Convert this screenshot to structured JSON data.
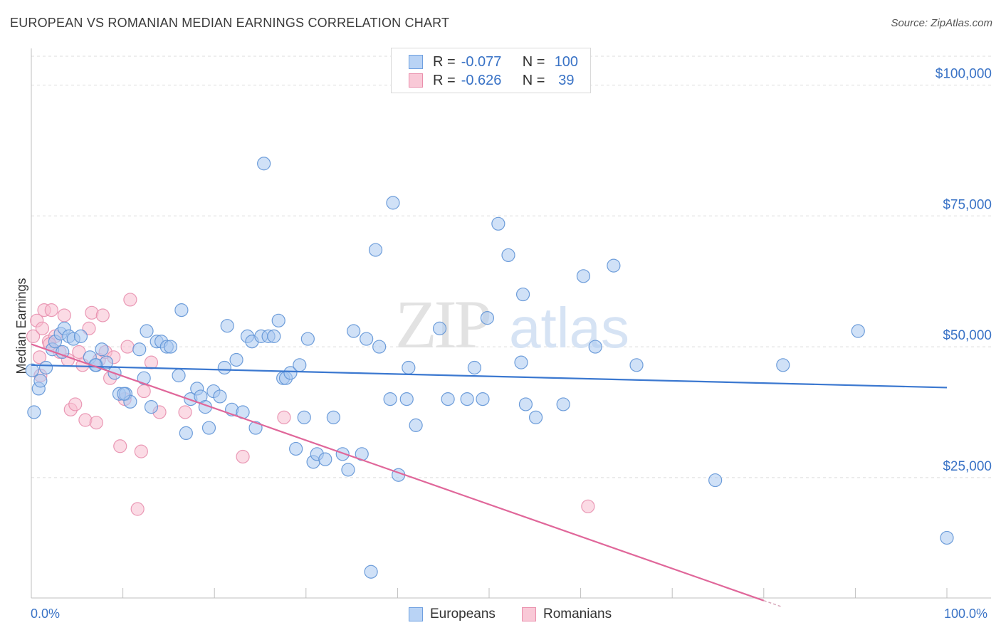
{
  "title": "EUROPEAN VS ROMANIAN MEDIAN EARNINGS CORRELATION CHART",
  "source": "Source: ZipAtlas.com",
  "legend": {
    "rows": [
      {
        "r_label": "R =",
        "r_value": "-0.077",
        "n_label": "N =",
        "n_value": "100",
        "fill": "#b9d3f5",
        "stroke": "#6fa0e0"
      },
      {
        "r_label": "R =",
        "r_value": "-0.626",
        "n_label": "N =",
        "n_value": "39",
        "fill": "#f9c9d7",
        "stroke": "#ea8fac"
      }
    ]
  },
  "bottom_legend": {
    "europeans": "Europeans",
    "romanians": "Romanians"
  },
  "watermark": {
    "zip": "ZIP",
    "atlas": "atlas"
  },
  "colors": {
    "blue": "#3b78d0",
    "pink": "#e0679a",
    "blue_fill": "#a9c8f0",
    "pink_fill": "#f7bdd0",
    "tick_text": "#3a73c6"
  },
  "chart_data": {
    "type": "scatter",
    "title": "EUROPEAN VS ROMANIAN MEDIAN EARNINGS CORRELATION CHART",
    "xlabel": "",
    "ylabel": "Median Earnings",
    "xlim": [
      0,
      100
    ],
    "ylim": [
      2000,
      107000
    ],
    "x_ticks": [
      {
        "value": 0,
        "label": "0.0%"
      },
      {
        "value": 100,
        "label": "100.0%"
      }
    ],
    "y_ticks": [
      {
        "value": 25000,
        "label": "$25,000"
      },
      {
        "value": 50000,
        "label": "$50,000"
      },
      {
        "value": 75000,
        "label": "$75,000"
      },
      {
        "value": 100000,
        "label": "$100,000"
      }
    ],
    "grid": true,
    "legend_position": "top-center",
    "series": [
      {
        "name": "Europeans",
        "r": -0.077,
        "n": 100,
        "trend": {
          "x": [
            0,
            100
          ],
          "y": [
            46500,
            42200
          ]
        },
        "points": [
          [
            0.1,
            45500
          ],
          [
            0.3,
            37500
          ],
          [
            0.8,
            42000
          ],
          [
            1.0,
            43500
          ],
          [
            1.6,
            46000
          ],
          [
            2.3,
            49500
          ],
          [
            2.6,
            51000
          ],
          [
            3.2,
            52500
          ],
          [
            3.6,
            53500
          ],
          [
            4.1,
            52000
          ],
          [
            4.6,
            51500
          ],
          [
            5.4,
            52000
          ],
          [
            6.4,
            48000
          ],
          [
            7.1,
            46500
          ],
          [
            7.7,
            49500
          ],
          [
            8.2,
            47000
          ],
          [
            9.1,
            45000
          ],
          [
            9.6,
            41000
          ],
          [
            10.3,
            41000
          ],
          [
            10.8,
            39500
          ],
          [
            11.8,
            49500
          ],
          [
            12.3,
            44000
          ],
          [
            12.6,
            53000
          ],
          [
            13.1,
            38500
          ],
          [
            13.7,
            51000
          ],
          [
            14.2,
            51000
          ],
          [
            14.8,
            50000
          ],
          [
            15.2,
            50000
          ],
          [
            16.1,
            44500
          ],
          [
            16.4,
            57000
          ],
          [
            16.9,
            33500
          ],
          [
            17.4,
            40000
          ],
          [
            18.1,
            42000
          ],
          [
            18.5,
            40500
          ],
          [
            19.0,
            38500
          ],
          [
            19.4,
            34500
          ],
          [
            19.9,
            41500
          ],
          [
            20.6,
            40500
          ],
          [
            21.1,
            46000
          ],
          [
            21.4,
            54000
          ],
          [
            21.9,
            38000
          ],
          [
            22.4,
            47500
          ],
          [
            23.1,
            37500
          ],
          [
            23.6,
            52000
          ],
          [
            24.1,
            51000
          ],
          [
            24.5,
            34500
          ],
          [
            25.1,
            52000
          ],
          [
            25.4,
            85000
          ],
          [
            25.9,
            52000
          ],
          [
            26.5,
            52000
          ],
          [
            27.0,
            55000
          ],
          [
            27.5,
            44000
          ],
          [
            27.8,
            44000
          ],
          [
            28.3,
            45000
          ],
          [
            28.9,
            30500
          ],
          [
            29.3,
            46500
          ],
          [
            29.8,
            36500
          ],
          [
            30.2,
            51500
          ],
          [
            30.8,
            28000
          ],
          [
            31.2,
            29500
          ],
          [
            32.1,
            28500
          ],
          [
            33.0,
            36500
          ],
          [
            34.0,
            29500
          ],
          [
            34.6,
            26500
          ],
          [
            35.2,
            53000
          ],
          [
            36.1,
            29500
          ],
          [
            36.6,
            51500
          ],
          [
            37.1,
            7000
          ],
          [
            37.6,
            68500
          ],
          [
            38.0,
            50000
          ],
          [
            39.2,
            40000
          ],
          [
            39.5,
            77500
          ],
          [
            40.1,
            25500
          ],
          [
            41.0,
            40000
          ],
          [
            41.2,
            46000
          ],
          [
            42.0,
            35000
          ],
          [
            44.6,
            53500
          ],
          [
            45.5,
            40000
          ],
          [
            47.6,
            40000
          ],
          [
            48.4,
            46000
          ],
          [
            49.3,
            40000
          ],
          [
            49.8,
            55500
          ],
          [
            51.0,
            73500
          ],
          [
            52.1,
            67500
          ],
          [
            53.5,
            47000
          ],
          [
            53.7,
            60000
          ],
          [
            54.0,
            39000
          ],
          [
            55.1,
            36500
          ],
          [
            58.1,
            39000
          ],
          [
            60.3,
            63500
          ],
          [
            61.6,
            50000
          ],
          [
            63.6,
            65500
          ],
          [
            66.1,
            46500
          ],
          [
            74.7,
            24500
          ],
          [
            82.1,
            46500
          ],
          [
            90.3,
            53000
          ],
          [
            100.0,
            13500
          ],
          [
            10.1,
            41000
          ],
          [
            3.4,
            49000
          ],
          [
            7.0,
            46500
          ]
        ]
      },
      {
        "name": "Romanians",
        "r": -0.626,
        "n": 39,
        "trend": {
          "x": [
            0,
            80
          ],
          "y": [
            50500,
            1500
          ]
        },
        "trend_dashed": {
          "x": [
            80,
            82
          ],
          "y": [
            1500,
            300
          ]
        },
        "points": [
          [
            0.2,
            52000
          ],
          [
            0.6,
            55000
          ],
          [
            0.9,
            48000
          ],
          [
            1.2,
            53500
          ],
          [
            1.4,
            57000
          ],
          [
            1.9,
            51000
          ],
          [
            2.2,
            57000
          ],
          [
            2.6,
            52000
          ],
          [
            3.1,
            49000
          ],
          [
            3.6,
            56000
          ],
          [
            4.0,
            47500
          ],
          [
            4.3,
            38000
          ],
          [
            4.8,
            39000
          ],
          [
            5.2,
            49000
          ],
          [
            5.6,
            46500
          ],
          [
            5.9,
            36000
          ],
          [
            6.3,
            53500
          ],
          [
            6.6,
            56500
          ],
          [
            7.1,
            35500
          ],
          [
            7.4,
            47500
          ],
          [
            7.8,
            56000
          ],
          [
            8.1,
            49000
          ],
          [
            8.6,
            44000
          ],
          [
            9.0,
            48000
          ],
          [
            9.7,
            31000
          ],
          [
            10.2,
            40000
          ],
          [
            10.5,
            50000
          ],
          [
            10.8,
            59000
          ],
          [
            11.6,
            19000
          ],
          [
            12.0,
            30000
          ],
          [
            12.3,
            41500
          ],
          [
            13.1,
            47000
          ],
          [
            14.0,
            37500
          ],
          [
            16.8,
            37500
          ],
          [
            23.1,
            29000
          ],
          [
            27.6,
            36500
          ],
          [
            60.8,
            19500
          ],
          [
            2.0,
            50500
          ],
          [
            1.0,
            44500
          ]
        ]
      }
    ]
  }
}
